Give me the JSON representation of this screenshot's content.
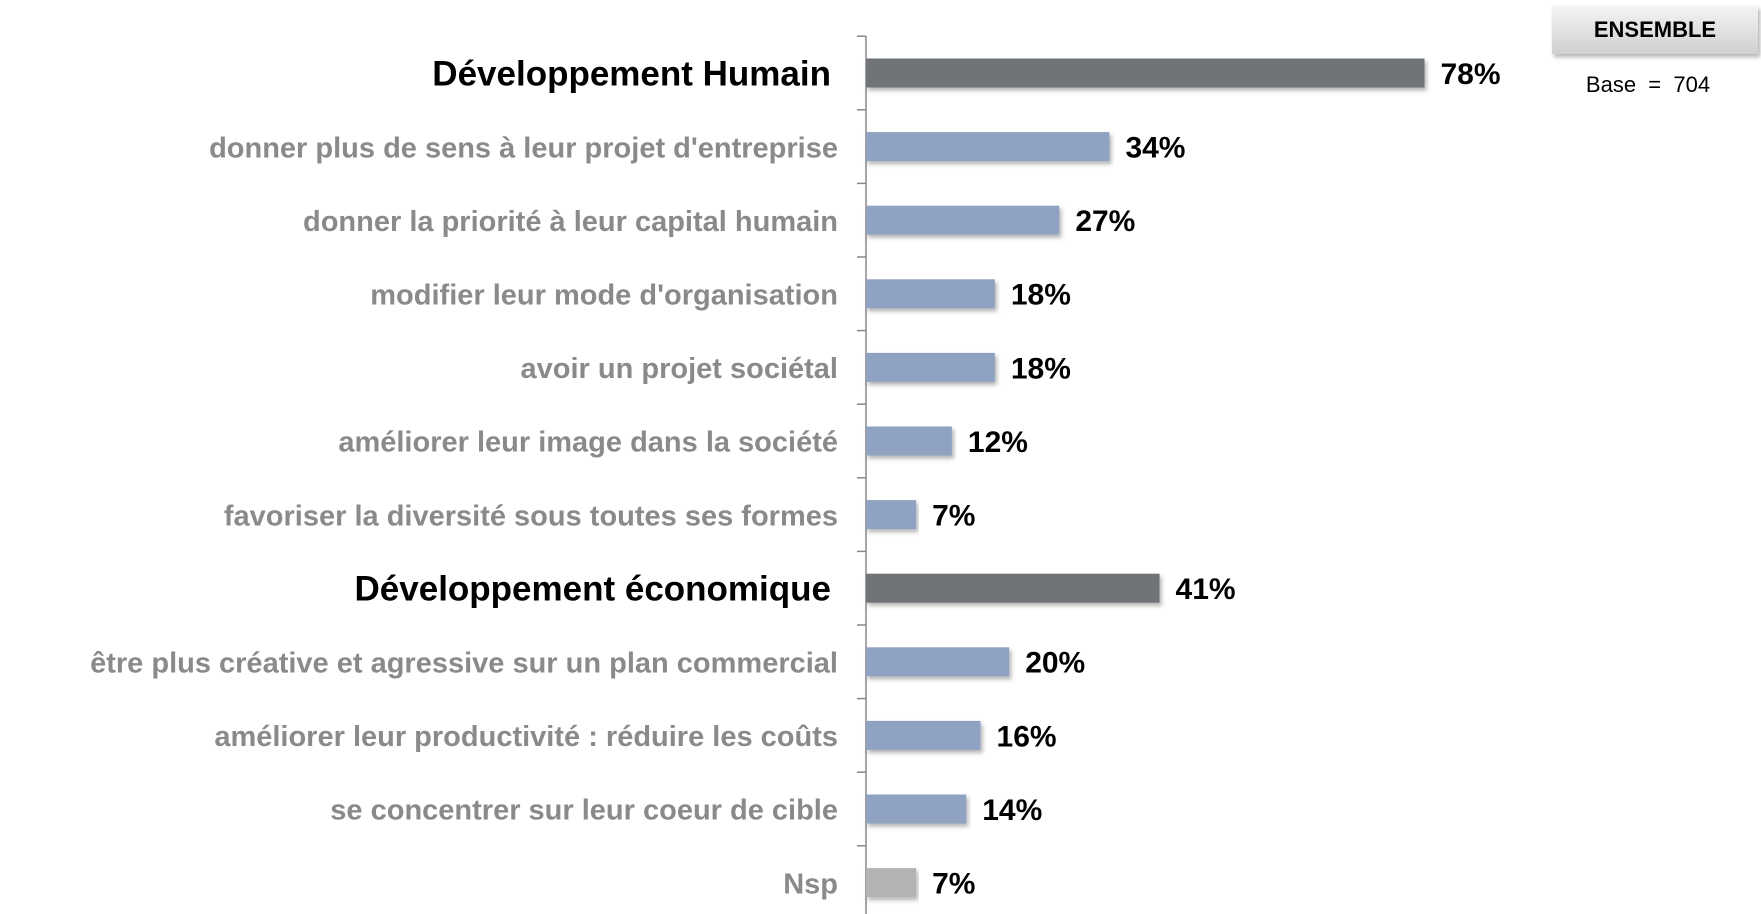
{
  "chart_data": {
    "type": "barh",
    "categories": [
      "Développement Humain",
      "donner plus de sens à leur projet d'entreprise",
      "donner la priorité à leur capital humain",
      "modifier leur mode d'organisation",
      "avoir un projet sociétal",
      "améliorer leur image dans la société",
      "favoriser la diversité sous toutes ses formes",
      "Développement économique",
      "être plus créative et agressive sur un plan commercial",
      "améliorer leur productivité : réduire les coûts",
      "se concentrer sur leur coeur de cible",
      "Nsp"
    ],
    "values": [
      78,
      34,
      27,
      18,
      18,
      12,
      7,
      41,
      20,
      16,
      14,
      7
    ],
    "value_labels": [
      "78%",
      "34%",
      "27%",
      "18%",
      "18%",
      "12%",
      "7%",
      "41%",
      "20%",
      "16%",
      "14%",
      "7%"
    ],
    "colors": [
      "#6f7378",
      "#8fa2c2",
      "#8fa2c2",
      "#8fa2c2",
      "#8fa2c2",
      "#8fa2c2",
      "#8fa2c2",
      "#6f7378",
      "#8fa2c2",
      "#8fa2c2",
      "#8fa2c2",
      "#b3b3b3"
    ],
    "label_colors": [
      "#000000",
      "#8a8a8a",
      "#8a8a8a",
      "#8a8a8a",
      "#8a8a8a",
      "#8a8a8a",
      "#8a8a8a",
      "#000000",
      "#8a8a8a",
      "#8a8a8a",
      "#8a8a8a",
      "#8a8a8a"
    ],
    "legend_box": "ENSEMBLE",
    "note": "Base  =  704"
  }
}
